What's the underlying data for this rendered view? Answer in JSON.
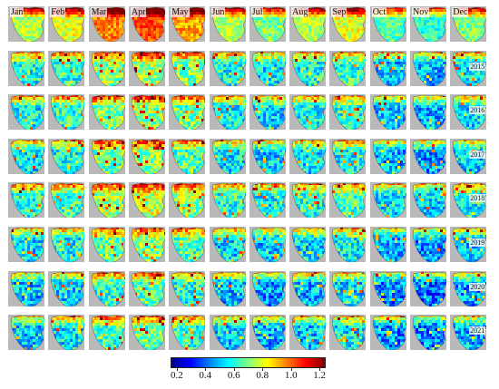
{
  "chart_data": {
    "type": "heatmap",
    "months": [
      "Jan",
      "Feb",
      "Mar",
      "Apr",
      "May",
      "Jun",
      "Jul",
      "Aug",
      "Sep",
      "Oct",
      "Nov",
      "Dec"
    ],
    "years": [
      "2015",
      "2016",
      "2017",
      "2018",
      "2019",
      "2020",
      "2021"
    ],
    "top_row": "monthly climatology (unlabeled)",
    "colorbar": {
      "ticks": [
        "0.2",
        "0.4",
        "0.6",
        "0.8",
        "1.0",
        "1.2"
      ],
      "range": [
        0.2,
        1.2
      ],
      "colormap": [
        "#00008f",
        "#0000ff",
        "#0080ff",
        "#00ffff",
        "#80ff80",
        "#ffff00",
        "#ff8000",
        "#ff0000",
        "#800000"
      ]
    },
    "land_color": "#b9b9b9",
    "monthly_mean_level": [
      0.55,
      0.6,
      0.75,
      0.8,
      0.72,
      0.55,
      0.5,
      0.55,
      0.6,
      0.45,
      0.42,
      0.5
    ],
    "year_mean_level": [
      0.42,
      0.4,
      0.37,
      0.45,
      0.36,
      0.3,
      0.33
    ]
  }
}
